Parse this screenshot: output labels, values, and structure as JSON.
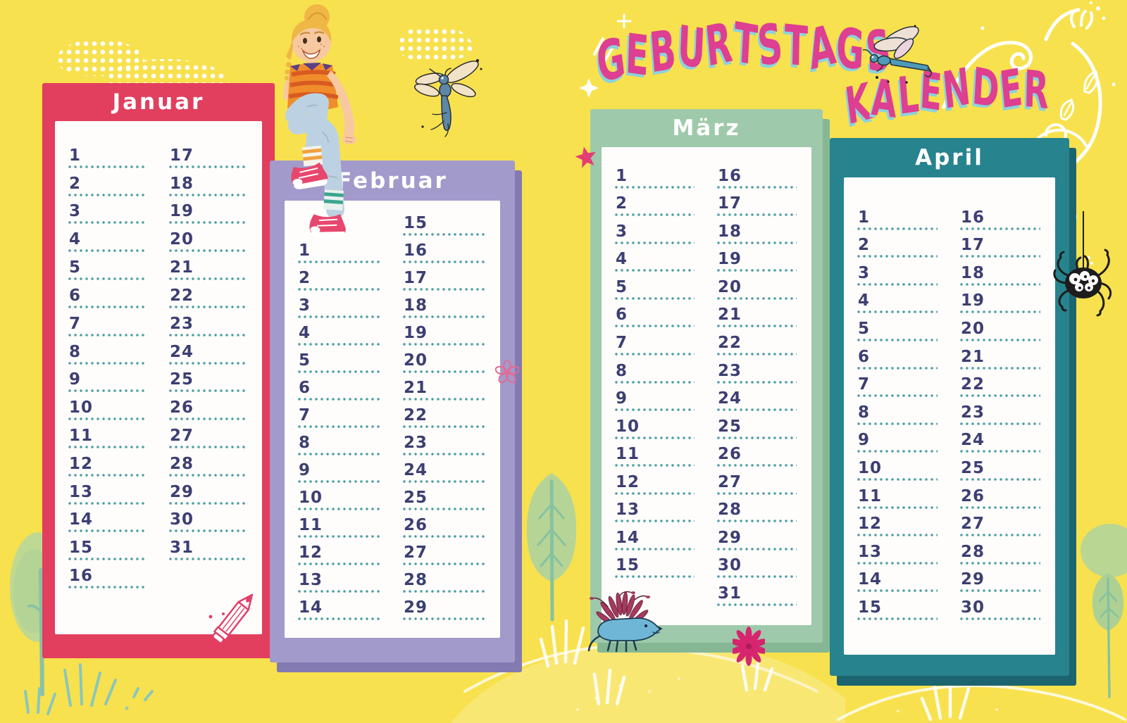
{
  "title": {
    "word1": "GEBURTSTAGS",
    "word2": "KALENDER",
    "color": "#de3f90",
    "shadow_color": "#8bd2dd"
  },
  "style": {
    "background": "#f8e14e",
    "day_number_color": "#3c3f72",
    "dot_line_color": "#4d9fa8",
    "header_text_color": "#ffffff"
  },
  "months": [
    {
      "name": "Januar",
      "frame_color": "#e23e5e",
      "shadow_color": "",
      "left_days": [
        1,
        2,
        3,
        4,
        5,
        6,
        7,
        8,
        9,
        10,
        11,
        12,
        13,
        14,
        15,
        16
      ],
      "right_days": [
        17,
        18,
        19,
        20,
        21,
        22,
        23,
        24,
        25,
        26,
        27,
        28,
        29,
        30,
        31
      ],
      "left_pad_top": 0
    },
    {
      "name": "Februar",
      "frame_color": "#a29aca",
      "shadow_color": "#837ab2",
      "left_days": [
        1,
        2,
        3,
        4,
        5,
        6,
        7,
        8,
        9,
        10,
        11,
        12,
        13,
        14
      ],
      "right_days": [
        15,
        16,
        17,
        18,
        19,
        20,
        21,
        22,
        23,
        24,
        25,
        26,
        27,
        28,
        29
      ],
      "left_pad_top": 1
    },
    {
      "name": "März",
      "frame_color": "#9fc9ab",
      "shadow_color": "#86b794",
      "left_days": [
        1,
        2,
        3,
        4,
        5,
        6,
        7,
        8,
        9,
        10,
        11,
        12,
        13,
        14,
        15
      ],
      "right_days": [
        16,
        17,
        18,
        19,
        20,
        21,
        22,
        23,
        24,
        25,
        26,
        27,
        28,
        29,
        30,
        31
      ],
      "left_pad_top": 0
    },
    {
      "name": "April",
      "frame_color": "#27838e",
      "shadow_color": "#1c6570",
      "left_days": [
        1,
        2,
        3,
        4,
        5,
        6,
        7,
        8,
        9,
        10,
        11,
        12,
        13,
        14,
        15
      ],
      "right_days": [
        16,
        17,
        18,
        19,
        20,
        21,
        22,
        23,
        24,
        25,
        26,
        27,
        28,
        29,
        30
      ],
      "left_pad_top": 0
    }
  ],
  "decorations": {
    "clouds": "white polka-dot clouds",
    "girl-illustration": "girl with blonde bun, striped shirt and pink sneakers sitting on the Februar panel",
    "mosquito-icon": "blue gnat with beige wings",
    "dragonfly-icon": "blue dragonfly flying beside the title",
    "spider-icon": "black spider with big white eyes hanging on a thread",
    "porcupine-icon": "blue spiky creature at the März panel corner",
    "pencil-icon": "pink outlined pencil inside the Januar panel",
    "star-icon": "pink star on the März panel corner",
    "flower-icon": "magenta flower below the März panel",
    "flower-doodle-icon": "small pink flower doodle in the Februar panel",
    "trees": "soft green watercolor trees",
    "swirls": "white curly flourishes in the top right corner",
    "hill": "pale hill with white grass at the bottom"
  }
}
